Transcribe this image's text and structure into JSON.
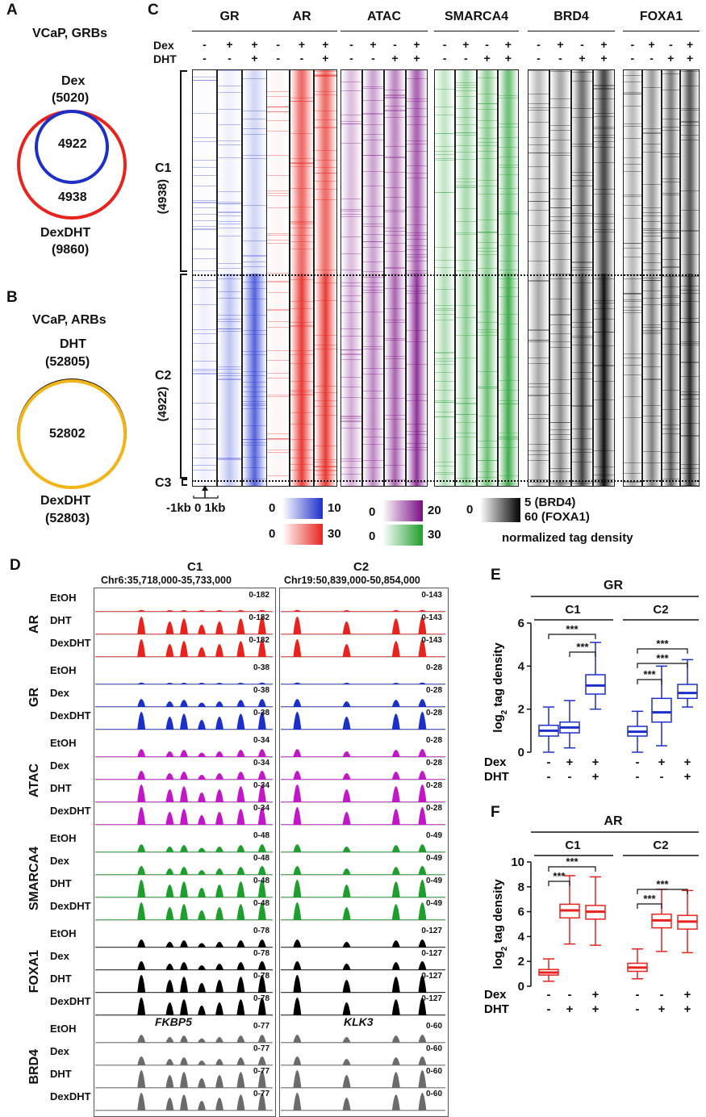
{
  "panels": {
    "A": {
      "letter": "A",
      "title": "VCaP, GRBs",
      "set1_name": "Dex",
      "set1_count": "(5020)",
      "overlap": "4922",
      "only2": "4938",
      "set2_name": "DexDHT",
      "set2_count": "(9860)"
    },
    "B": {
      "letter": "B",
      "title": "VCaP, ARBs",
      "set1_name": "DHT",
      "set1_count": "(52805)",
      "overlap": "52802",
      "set2_name": "DexDHT",
      "set2_count": "(52803)"
    },
    "C": {
      "letter": "C",
      "tracks": [
        "GR",
        "AR",
        "ATAC",
        "SMARCA4",
        "BRD4",
        "FOXA1"
      ],
      "dex_label": "Dex",
      "dht_label": "DHT",
      "dex_row": [
        "-",
        "+",
        "+"
      ],
      "dht_row": [
        "-",
        "-",
        "+"
      ],
      "dex_row4": [
        "-",
        "+",
        "-",
        "+"
      ],
      "dht_row4": [
        "-",
        "-",
        "+",
        "+"
      ],
      "cluster1": "C1",
      "cluster1_n": "(4938)",
      "cluster2": "C2",
      "cluster2_n": "(4922)",
      "cluster3": "C3",
      "axis": "-1kb 0 1kb",
      "scale": {
        "gr_min": "0",
        "gr_max": "10",
        "ar_min": "0",
        "ar_max": "30",
        "atac_min": "0",
        "atac_max": "20",
        "sm_min": "0",
        "sm_max": "30",
        "bw_min": "0",
        "bw_max1": "5 (BRD4)",
        "bw_max2": "60 (FOXA1)",
        "caption": "normalized tag density"
      }
    },
    "D": {
      "letter": "D",
      "c1": "C1",
      "c1_locus": "Chr6:35,718,000-35,733,000",
      "c1_gene": "FKBP5",
      "c2": "C2",
      "c2_locus": "Chr19:50,839,000-50,854,000",
      "c2_gene": "KLK3",
      "groups": [
        {
          "name": "AR",
          "color": "#e8231e",
          "rows": [
            {
              "cond": "EtOH",
              "r1": "0-182",
              "r2": "0-143"
            },
            {
              "cond": "DHT",
              "r1": "0-182",
              "r2": "0-143"
            },
            {
              "cond": "DexDHT",
              "r1": "0-182",
              "r2": "0-143"
            }
          ]
        },
        {
          "name": "GR",
          "color": "#1c2fc9",
          "rows": [
            {
              "cond": "EtOH",
              "r1": "0-38",
              "r2": "0-28"
            },
            {
              "cond": "Dex",
              "r1": "0-38",
              "r2": "0-28"
            },
            {
              "cond": "DexDHT",
              "r1": "0-38",
              "r2": "0-28"
            }
          ]
        },
        {
          "name": "ATAC",
          "color": "#c316c9",
          "rows": [
            {
              "cond": "EtOH",
              "r1": "0-34",
              "r2": "0-28"
            },
            {
              "cond": "Dex",
              "r1": "0-34",
              "r2": "0-28"
            },
            {
              "cond": "DHT",
              "r1": "0-34",
              "r2": "0-28"
            },
            {
              "cond": "DexDHT",
              "r1": "0-34",
              "r2": "0-28"
            }
          ]
        },
        {
          "name": "SMARCA4",
          "color": "#1e9e2c",
          "rows": [
            {
              "cond": "EtOH",
              "r1": "0-48",
              "r2": "0-49"
            },
            {
              "cond": "Dex",
              "r1": "0-48",
              "r2": "0-49"
            },
            {
              "cond": "DHT",
              "r1": "0-48",
              "r2": "0-49"
            },
            {
              "cond": "DexDHT",
              "r1": "0-48",
              "r2": "0-49"
            }
          ]
        },
        {
          "name": "FOXA1",
          "color": "#000000",
          "rows": [
            {
              "cond": "EtOH",
              "r1": "0-78",
              "r2": "0-127"
            },
            {
              "cond": "Dex",
              "r1": "0-78",
              "r2": "0-127"
            },
            {
              "cond": "DHT",
              "r1": "0-78",
              "r2": "0-127"
            },
            {
              "cond": "DexDHT",
              "r1": "0-78",
              "r2": "0-127"
            }
          ]
        },
        {
          "name": "BRD4",
          "color": "#6b6b6b",
          "rows": [
            {
              "cond": "EtOH",
              "r1": "0-77",
              "r2": "0-60"
            },
            {
              "cond": "Dex",
              "r1": "0-77",
              "r2": "0-60"
            },
            {
              "cond": "DHT",
              "r1": "0-77",
              "r2": "0-60"
            },
            {
              "cond": "DexDHT",
              "r1": "0-77",
              "r2": "0-60"
            }
          ]
        }
      ]
    },
    "E": {
      "letter": "E",
      "title": "GR",
      "ylabel": "log2 tag density",
      "sig": "***"
    },
    "F": {
      "letter": "F",
      "title": "AR",
      "ylabel": "log2 tag density",
      "sig": "***"
    }
  },
  "chart_data": [
    {
      "type": "box",
      "title": "GR",
      "ylabel": "log2 tag density",
      "ylim": [
        0,
        6
      ],
      "yticks": [
        "0",
        "2",
        "4",
        "6"
      ],
      "groups": [
        "C1",
        "C2"
      ],
      "conditions_dex": [
        "-",
        "+",
        "+"
      ],
      "conditions_dht": [
        "-",
        "-",
        "+"
      ],
      "color": "#1c2fc9",
      "boxes": [
        {
          "group": "C1",
          "min": 0.0,
          "q1": 0.75,
          "median": 1.0,
          "q3": 1.25,
          "max": 2.1
        },
        {
          "group": "C1",
          "min": 0.2,
          "q1": 0.9,
          "median": 1.15,
          "q3": 1.4,
          "max": 2.4
        },
        {
          "group": "C1",
          "min": 2.0,
          "q1": 2.7,
          "median": 3.1,
          "q3": 3.6,
          "max": 5.1
        },
        {
          "group": "C2",
          "min": 0.0,
          "q1": 0.75,
          "median": 0.95,
          "q3": 1.2,
          "max": 1.9
        },
        {
          "group": "C2",
          "min": 0.3,
          "q1": 1.4,
          "median": 1.85,
          "q3": 2.5,
          "max": 4.0
        },
        {
          "group": "C2",
          "min": 2.1,
          "q1": 2.5,
          "median": 2.75,
          "q3": 3.15,
          "max": 4.3
        }
      ]
    },
    {
      "type": "box",
      "title": "AR",
      "ylabel": "log2 tag density",
      "ylim": [
        0,
        10
      ],
      "yticks": [
        "0",
        "2",
        "4",
        "6",
        "8",
        "10"
      ],
      "groups": [
        "C1",
        "C2"
      ],
      "conditions_dex": [
        "-",
        "-",
        "+"
      ],
      "conditions_dht": [
        "-",
        "+",
        "+"
      ],
      "color": "#e8231e",
      "boxes": [
        {
          "group": "C1",
          "min": 0.4,
          "q1": 0.9,
          "median": 1.1,
          "q3": 1.35,
          "max": 2.2
        },
        {
          "group": "C1",
          "min": 3.4,
          "q1": 5.5,
          "median": 6.1,
          "q3": 6.6,
          "max": 8.9
        },
        {
          "group": "C1",
          "min": 3.3,
          "q1": 5.4,
          "median": 6.0,
          "q3": 6.5,
          "max": 8.8
        },
        {
          "group": "C2",
          "min": 0.6,
          "q1": 1.2,
          "median": 1.5,
          "q3": 1.85,
          "max": 3.0
        },
        {
          "group": "C2",
          "min": 2.8,
          "q1": 4.7,
          "median": 5.3,
          "q3": 5.8,
          "max": 7.8
        },
        {
          "group": "C2",
          "min": 2.7,
          "q1": 4.6,
          "median": 5.2,
          "q3": 5.7,
          "max": 7.7
        }
      ]
    }
  ]
}
